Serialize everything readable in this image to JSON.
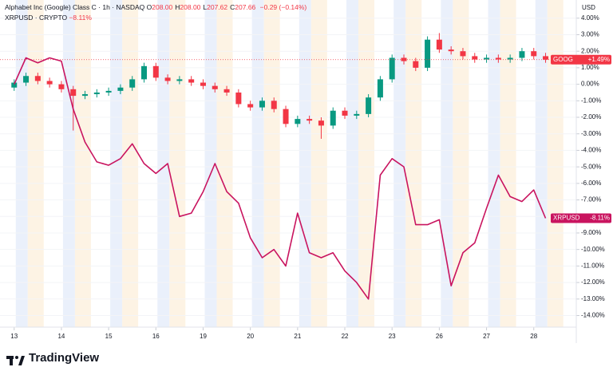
{
  "chart_data": {
    "type": "candlestick",
    "title": "Alphabet Inc (Google) Class C · 1h · NASDAQ",
    "ohlc_legend": [
      {
        "k": "O",
        "v": "208.00"
      },
      {
        "k": "H",
        "v": "208.00"
      },
      {
        "k": "L",
        "v": "207.62"
      },
      {
        "k": "C",
        "v": "207.66"
      }
    ],
    "change": "−0.29 (−0.14%)",
    "currency": "USD",
    "x": [
      0,
      0.25,
      0.5,
      0.75,
      1,
      1.25,
      1.5,
      1.75,
      2,
      2.25,
      2.5,
      2.75,
      3,
      3.25,
      3.5,
      3.75,
      4,
      4.25,
      4.5,
      4.75,
      5,
      5.25,
      5.5,
      5.75,
      6,
      6.25,
      6.5,
      6.75,
      7,
      7.25,
      7.5,
      7.75,
      8,
      8.25,
      8.5,
      8.75,
      9,
      9.25,
      9.5,
      9.75,
      10,
      10.25,
      10.5,
      10.75,
      11,
      11.25
    ],
    "series": [
      {
        "name": "GOOG",
        "type": "candlestick",
        "up_color": "#089981",
        "down_color": "#f23645",
        "badge": "+1.49%",
        "open": [
          -0.2,
          0.1,
          0.5,
          0.2,
          0.0,
          -0.3,
          -0.7,
          -0.6,
          -0.5,
          -0.4,
          -0.2,
          0.3,
          1.1,
          0.4,
          0.2,
          0.3,
          0.1,
          -0.1,
          -0.3,
          -0.5,
          -1.2,
          -1.4,
          -1.0,
          -1.5,
          -2.4,
          -2.1,
          -2.2,
          -2.5,
          -1.6,
          -1.9,
          -1.8,
          -0.8,
          0.3,
          1.6,
          1.4,
          1.0,
          2.7,
          2.1,
          2.0,
          1.7,
          1.5,
          1.6,
          1.5,
          1.6,
          2.0,
          1.7
        ],
        "high": [
          0.3,
          0.7,
          0.7,
          0.4,
          0.2,
          -0.1,
          -0.4,
          -0.3,
          -0.2,
          0.0,
          0.5,
          1.3,
          1.3,
          0.6,
          0.5,
          0.5,
          0.3,
          0.1,
          -0.1,
          -0.3,
          -1.0,
          -0.8,
          -0.8,
          -1.3,
          -1.9,
          -1.9,
          -2.0,
          -1.4,
          -1.4,
          -1.6,
          -0.6,
          0.5,
          1.8,
          1.8,
          1.6,
          2.9,
          3.1,
          2.3,
          2.2,
          1.9,
          1.8,
          1.8,
          1.8,
          2.2,
          2.2,
          1.9
        ],
        "low": [
          -0.4,
          -0.1,
          0.0,
          -0.2,
          -0.5,
          -2.8,
          -0.9,
          -0.8,
          -0.7,
          -0.6,
          -0.4,
          0.1,
          0.2,
          0.0,
          0.0,
          -0.1,
          -0.3,
          -0.5,
          -0.7,
          -1.4,
          -1.6,
          -1.6,
          -1.7,
          -2.6,
          -2.6,
          -2.4,
          -3.3,
          -2.7,
          -2.1,
          -2.1,
          -2.0,
          -1.0,
          0.1,
          1.2,
          0.8,
          0.8,
          1.9,
          1.8,
          1.5,
          1.3,
          1.3,
          1.3,
          1.3,
          1.4,
          1.5,
          1.3
        ],
        "close": [
          0.1,
          0.5,
          0.2,
          0.0,
          -0.3,
          -0.7,
          -0.6,
          -0.5,
          -0.4,
          -0.2,
          0.3,
          1.1,
          0.4,
          0.2,
          0.3,
          0.1,
          -0.1,
          -0.3,
          -0.5,
          -1.2,
          -1.4,
          -1.0,
          -1.5,
          -2.4,
          -2.1,
          -2.2,
          -2.5,
          -1.6,
          -1.9,
          -1.8,
          -0.8,
          0.3,
          1.6,
          1.4,
          1.0,
          2.7,
          2.1,
          2.0,
          1.7,
          1.5,
          1.6,
          1.5,
          1.6,
          2.0,
          1.7,
          1.49
        ]
      },
      {
        "name": "XRPUSD",
        "type": "line",
        "color": "#c9145f",
        "legend": "XRPUSD · CRYPTO",
        "legend_change": "−8.11%",
        "badge": "-8.11%",
        "values": [
          0.0,
          1.6,
          1.3,
          1.6,
          1.4,
          -1.5,
          -3.5,
          -4.7,
          -4.9,
          -4.5,
          -3.6,
          -4.8,
          -5.4,
          -4.8,
          -8.0,
          -7.8,
          -6.5,
          -4.8,
          -6.5,
          -7.2,
          -9.3,
          -10.5,
          -10.0,
          -11.0,
          -7.8,
          -10.2,
          -10.5,
          -10.2,
          -11.3,
          -12.0,
          -13.0,
          -5.5,
          -4.5,
          -5.0,
          -8.5,
          -8.5,
          -8.2,
          -12.2,
          -10.2,
          -9.6,
          -7.5,
          -5.5,
          -6.8,
          -7.1,
          -6.4,
          -8.11
        ]
      }
    ],
    "xlim": [
      -0.3,
      11.9
    ],
    "xticks": [
      {
        "value": 0,
        "label": "13"
      },
      {
        "value": 1,
        "label": "14"
      },
      {
        "value": 2,
        "label": "15"
      },
      {
        "value": 3,
        "label": "16"
      },
      {
        "value": 4,
        "label": "19"
      },
      {
        "value": 5,
        "label": "20"
      },
      {
        "value": 6,
        "label": "21"
      },
      {
        "value": 7,
        "label": "22"
      },
      {
        "value": 8,
        "label": "23"
      },
      {
        "value": 9,
        "label": "26"
      },
      {
        "value": 10,
        "label": "27"
      },
      {
        "value": 11,
        "label": "28"
      }
    ],
    "ylim": [
      -14.7,
      5.1
    ],
    "yticks": [
      {
        "value": 4,
        "label": "4.00%"
      },
      {
        "value": 3,
        "label": "3.00%"
      },
      {
        "value": 2,
        "label": "2.00%"
      },
      {
        "value": 1,
        "label": "1.00%"
      },
      {
        "value": 0,
        "label": "0.00%"
      },
      {
        "value": -1,
        "label": "-1.00%"
      },
      {
        "value": -2,
        "label": "-2.00%"
      },
      {
        "value": -3,
        "label": "-3.00%"
      },
      {
        "value": -4,
        "label": "-4.00%"
      },
      {
        "value": -5,
        "label": "-5.00%"
      },
      {
        "value": -6,
        "label": "-6.00%"
      },
      {
        "value": -7,
        "label": "-7.00%"
      },
      {
        "value": -8,
        "label": "-8.00%"
      },
      {
        "value": -9,
        "label": "-9.00%"
      },
      {
        "value": -10,
        "label": "-10.00%"
      },
      {
        "value": -11,
        "label": "-11.00%"
      },
      {
        "value": -12,
        "label": "-12.00%"
      },
      {
        "value": -13,
        "label": "-13.00%"
      },
      {
        "value": -14,
        "label": "-14.00%"
      }
    ],
    "grid": true
  },
  "brand": "TradingView"
}
